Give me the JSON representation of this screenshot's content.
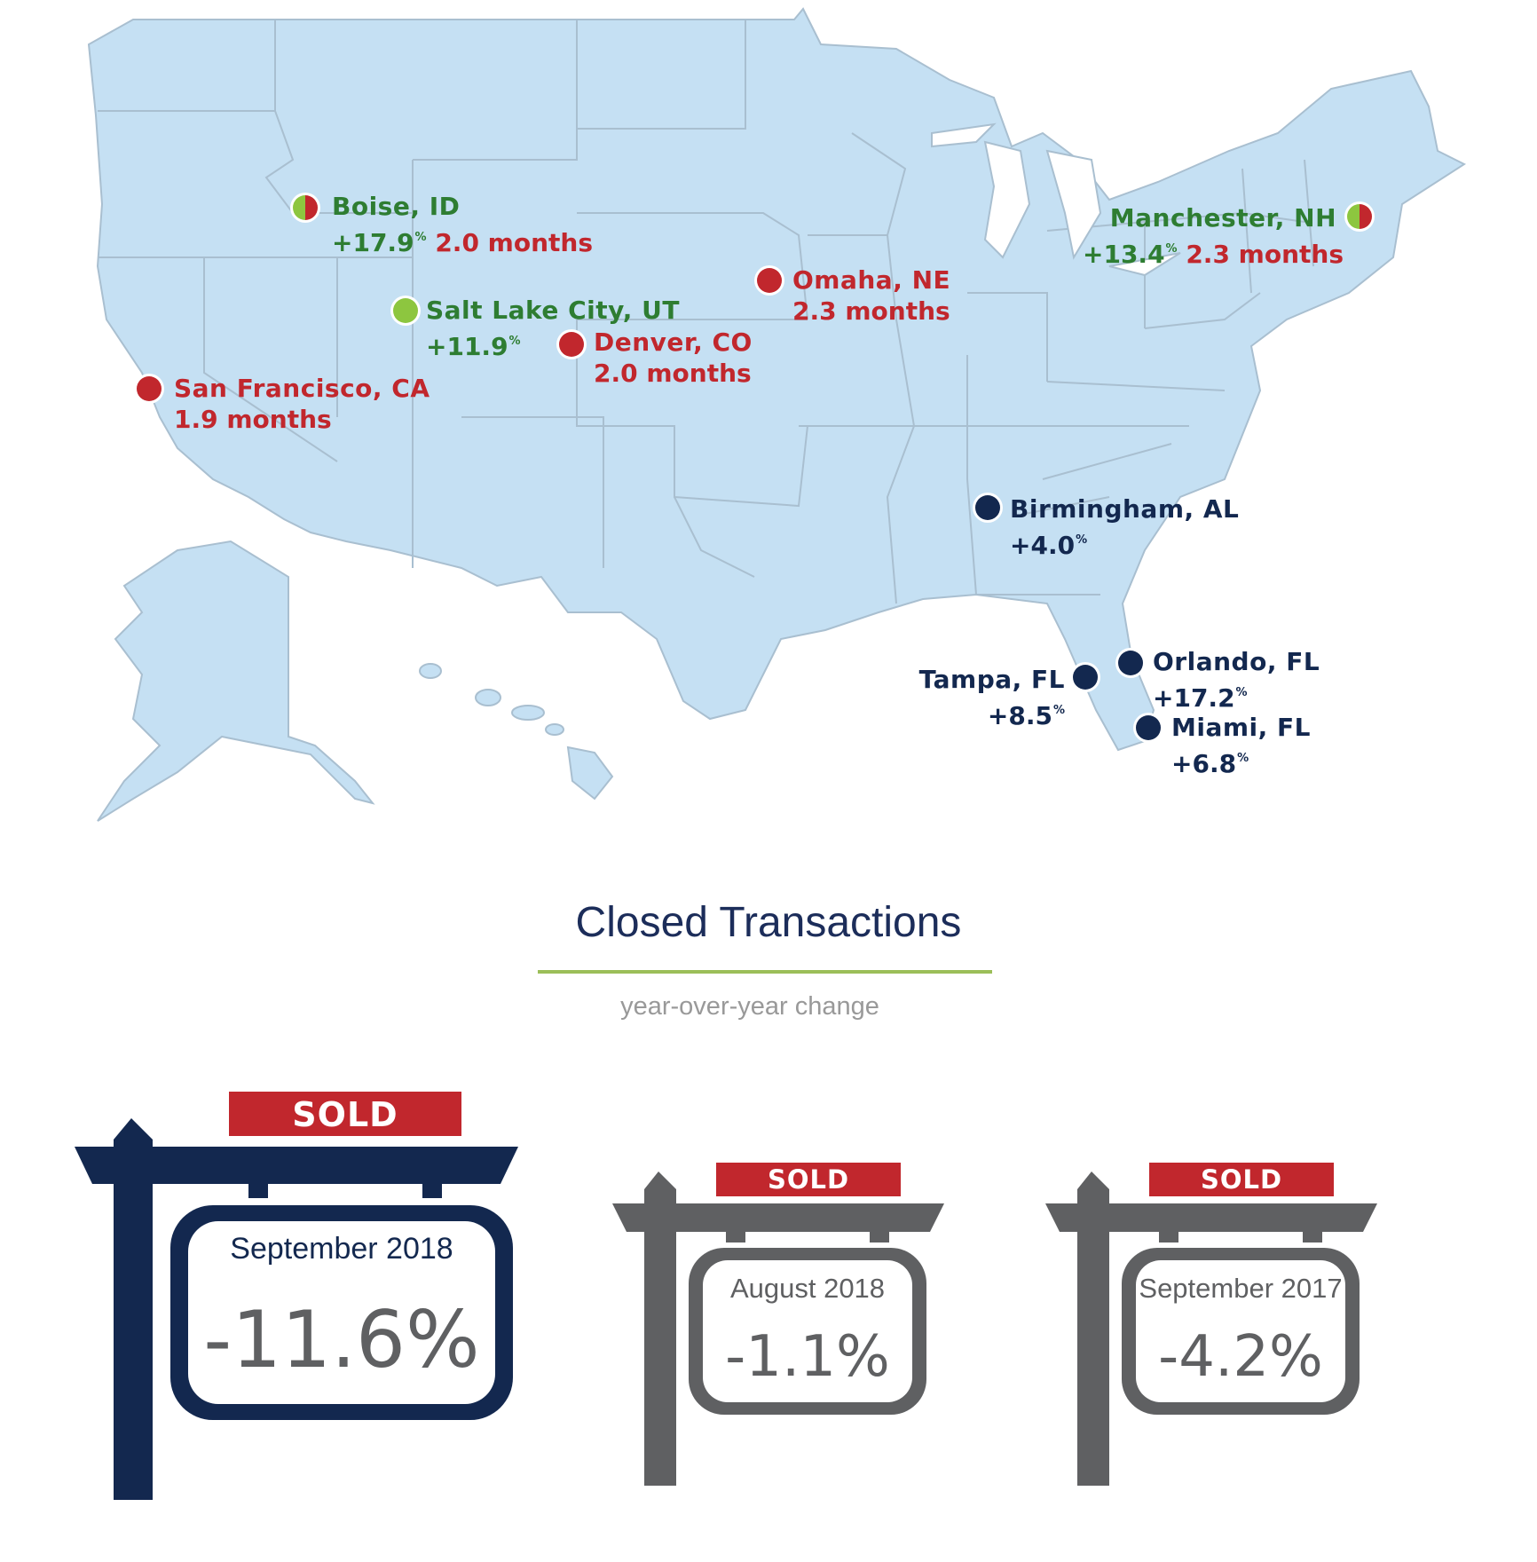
{
  "map": {
    "cities": [
      {
        "id": "boise",
        "name": "Boise, ID",
        "change": "+17.9",
        "months": "2.0 months",
        "marker": "split"
      },
      {
        "id": "salt-lake-city",
        "name": "Salt Lake City, UT",
        "change": "+11.9",
        "months": "",
        "marker": "green"
      },
      {
        "id": "omaha",
        "name": "Omaha, NE",
        "change": "",
        "months": "2.3 months",
        "marker": "red"
      },
      {
        "id": "denver",
        "name": "Denver, CO",
        "change": "",
        "months": "2.0 months",
        "marker": "red"
      },
      {
        "id": "san-francisco",
        "name": "San Francisco, CA",
        "change": "",
        "months": "1.9 months",
        "marker": "red"
      },
      {
        "id": "manchester",
        "name": "Manchester, NH",
        "change": "+13.4",
        "months": "2.3 months",
        "marker": "split"
      },
      {
        "id": "birmingham",
        "name": "Birmingham, AL",
        "change": "+4.0",
        "months": "",
        "marker": "navy"
      },
      {
        "id": "tampa",
        "name": "Tampa, FL",
        "change": "+8.5",
        "months": "",
        "marker": "navy"
      },
      {
        "id": "orlando",
        "name": "Orlando, FL",
        "change": "+17.2",
        "months": "",
        "marker": "navy"
      },
      {
        "id": "miami",
        "name": "Miami, FL",
        "change": "+6.8",
        "months": "",
        "marker": "navy"
      }
    ],
    "percent_symbol": "%",
    "colors": {
      "land": "#c5e0f3",
      "border": "#a9bfd0",
      "red": "#c1272d",
      "green": "#8dc63f",
      "navy": "#13284f"
    }
  },
  "closed_transactions": {
    "title": "Closed Transactions",
    "subtitle": "year-over-year change",
    "signs": [
      {
        "sold": "SOLD",
        "period": "September 2018",
        "value": "-11.6%",
        "color": "#13284f",
        "style": "featured"
      },
      {
        "sold": "SOLD",
        "period": "August 2018",
        "value": "-1.1%",
        "color": "#5f6062",
        "style": "small"
      },
      {
        "sold": "SOLD",
        "period": "September 2017",
        "value": "-4.2%",
        "color": "#5f6062",
        "style": "small"
      }
    ],
    "sold_color": "#c1272d"
  }
}
